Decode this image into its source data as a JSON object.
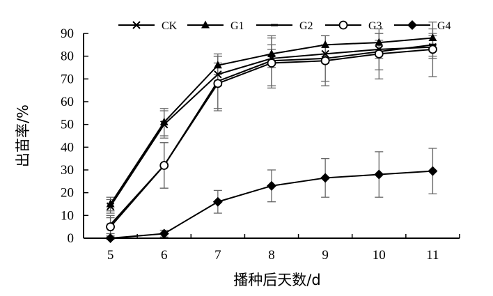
{
  "chart_data": {
    "type": "line",
    "title": "",
    "xlabel": "播种后天数/d",
    "ylabel": "出苗率/%",
    "x": [
      5,
      6,
      7,
      8,
      9,
      10,
      11
    ],
    "xlim": [
      4.5,
      11.5
    ],
    "ylim": [
      0,
      90
    ],
    "yticks": [
      0,
      10,
      20,
      30,
      40,
      50,
      60,
      70,
      80,
      90
    ],
    "grid": false,
    "legend_position": "top",
    "error_bars": true,
    "series": [
      {
        "name": "CK",
        "marker": "x",
        "values": [
          14,
          50,
          72,
          79,
          81,
          83,
          84
        ],
        "err": [
          3,
          6,
          5,
          4,
          4,
          4,
          5
        ]
      },
      {
        "name": "G1",
        "marker": "triangle",
        "values": [
          15,
          51,
          76,
          81,
          85,
          86,
          88
        ],
        "err": [
          3,
          6,
          4,
          4,
          4,
          4,
          4
        ]
      },
      {
        "name": "G2",
        "marker": "dash",
        "values": [
          6,
          32,
          69,
          78,
          79,
          82,
          85
        ],
        "err": [
          4,
          10,
          12,
          11,
          10,
          8,
          5
        ]
      },
      {
        "name": "G3",
        "marker": "circle",
        "values": [
          5,
          32,
          68,
          77,
          78,
          81,
          83
        ],
        "err": [
          4,
          10,
          12,
          11,
          11,
          11,
          12
        ]
      },
      {
        "name": "G4",
        "marker": "diamond",
        "values": [
          0,
          2,
          16,
          23,
          26.5,
          28,
          29.5
        ],
        "err": [
          0.5,
          1.5,
          5,
          7,
          8.5,
          10,
          10
        ]
      }
    ]
  }
}
